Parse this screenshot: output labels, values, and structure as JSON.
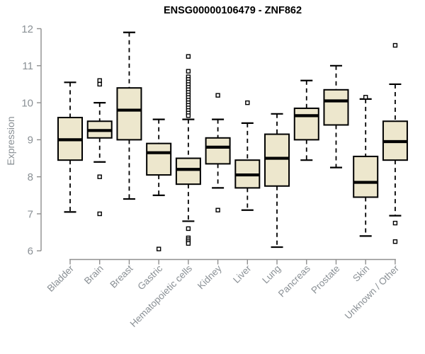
{
  "header": {
    "title": "ENSG00000106479 - ZNF862"
  },
  "chart_data": {
    "type": "boxplot",
    "title": "ENSG00000106479 - ZNF862",
    "xlabel": "",
    "ylabel": "Expression",
    "ylim": [
      6,
      12
    ],
    "yticks": [
      6,
      7,
      8,
      9,
      10,
      11,
      12
    ],
    "grid": false,
    "legend": "none",
    "categories": [
      "Bladder",
      "Brain",
      "Breast",
      "Gastric",
      "Hematopoietic cells",
      "Kidney",
      "Liver",
      "Lung",
      "Pancreas",
      "Prostate",
      "Skin",
      "Unknown / Other"
    ],
    "series": [
      {
        "name": "Bladder",
        "low": 7.05,
        "q1": 8.45,
        "median": 9.0,
        "q3": 9.6,
        "high": 10.55,
        "outliers": []
      },
      {
        "name": "Brain",
        "low": 8.4,
        "q1": 9.05,
        "median": 9.25,
        "q3": 9.5,
        "high": 10.0,
        "outliers": [
          10.6,
          10.5,
          8.0,
          7.0
        ]
      },
      {
        "name": "Breast",
        "low": 7.4,
        "q1": 9.0,
        "median": 9.8,
        "q3": 10.4,
        "high": 11.9,
        "outliers": []
      },
      {
        "name": "Gastric",
        "low": 7.5,
        "q1": 8.05,
        "median": 8.65,
        "q3": 8.9,
        "high": 9.55,
        "outliers": [
          6.05
        ]
      },
      {
        "name": "Hematopoietic cells",
        "low": 6.8,
        "q1": 7.8,
        "median": 8.2,
        "q3": 8.5,
        "high": 9.55,
        "outliers": [
          11.25,
          10.85,
          10.7,
          10.63,
          10.56,
          10.49,
          10.42,
          10.35,
          10.28,
          10.21,
          10.14,
          10.07,
          10.0,
          9.93,
          9.86,
          9.79,
          9.72,
          9.65,
          6.6,
          6.35,
          6.3,
          6.25,
          6.2
        ]
      },
      {
        "name": "Kidney",
        "low": 7.7,
        "q1": 8.35,
        "median": 8.8,
        "q3": 9.05,
        "high": 9.55,
        "outliers": [
          10.2,
          7.1
        ]
      },
      {
        "name": "Liver",
        "low": 7.1,
        "q1": 7.7,
        "median": 8.05,
        "q3": 8.45,
        "high": 9.45,
        "outliers": [
          10.0
        ]
      },
      {
        "name": "Lung",
        "low": 6.1,
        "q1": 7.75,
        "median": 8.5,
        "q3": 9.15,
        "high": 9.7,
        "outliers": []
      },
      {
        "name": "Pancreas",
        "low": 8.45,
        "q1": 9.0,
        "median": 9.65,
        "q3": 9.85,
        "high": 10.6,
        "outliers": []
      },
      {
        "name": "Prostate",
        "low": 8.25,
        "q1": 9.4,
        "median": 10.05,
        "q3": 10.35,
        "high": 11.0,
        "outliers": []
      },
      {
        "name": "Skin",
        "low": 6.4,
        "q1": 7.45,
        "median": 7.85,
        "q3": 8.55,
        "high": 10.1,
        "outliers": [
          10.15
        ]
      },
      {
        "name": "Unknown / Other",
        "low": 6.95,
        "q1": 8.45,
        "median": 8.95,
        "q3": 9.5,
        "high": 10.5,
        "outliers": [
          11.55,
          6.75,
          6.25
        ]
      }
    ],
    "colors": {
      "box_fill": "#ede7cd",
      "box_stroke": "#000000",
      "median": "#000000",
      "whisker": "#000000",
      "outlier_fill": "#ffffff",
      "axis_line": "#8f8f8f",
      "tick_label": "#8a9095",
      "title": "#000000"
    }
  }
}
